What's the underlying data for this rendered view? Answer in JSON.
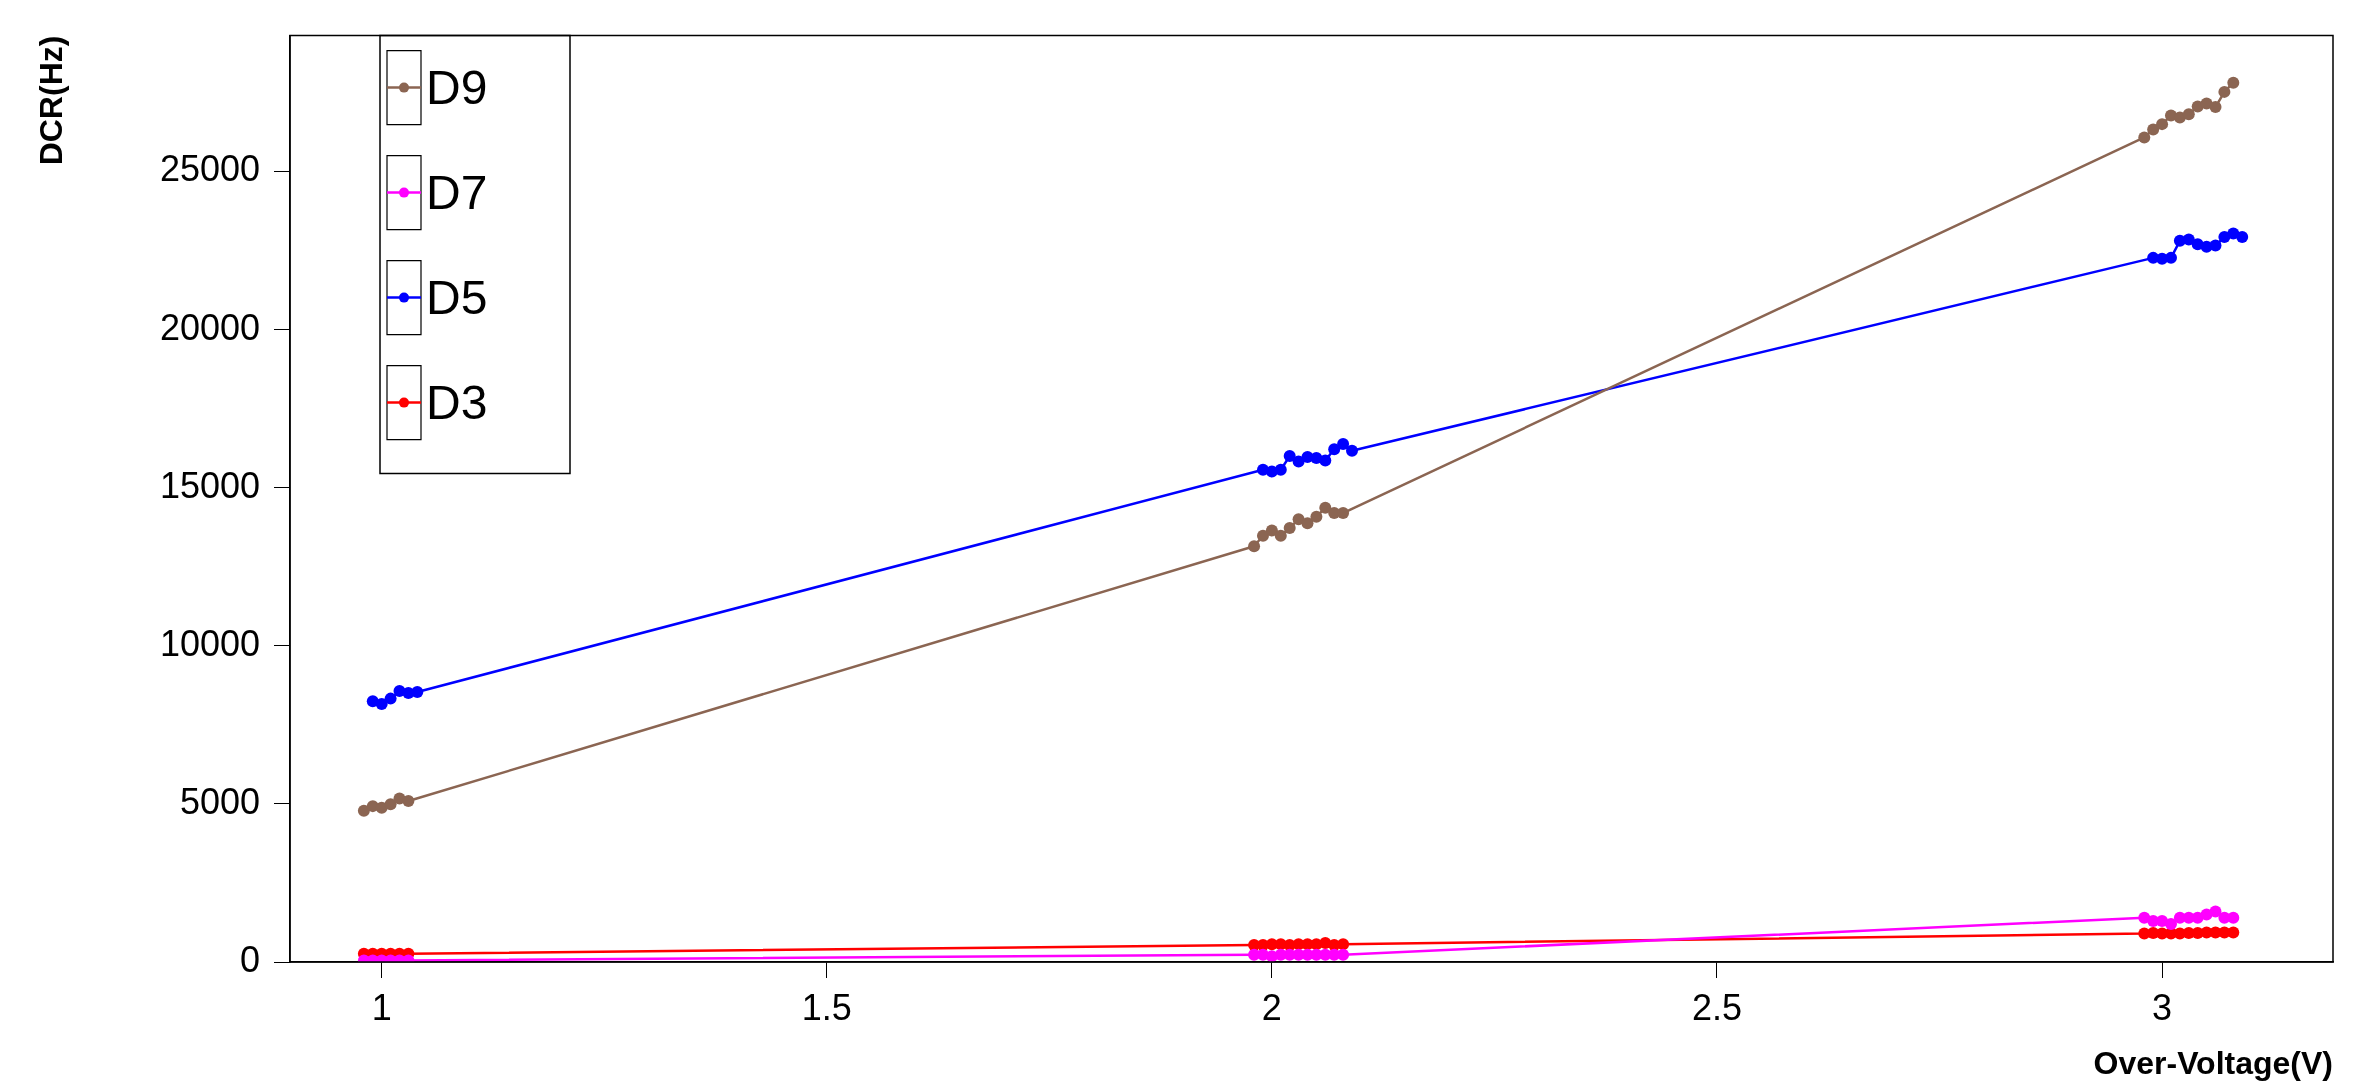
{
  "chart_data": {
    "type": "line",
    "xlabel": "Over-Voltage(V)",
    "ylabel": "DCR(Hz)",
    "xlim": [
      0.897,
      3.192
    ],
    "ylim": [
      0,
      29300
    ],
    "xticks": [
      1,
      1.5,
      2,
      2.5,
      3
    ],
    "yticks": [
      0,
      5000,
      10000,
      15000,
      20000,
      25000
    ],
    "grid": false,
    "legend": "top left",
    "marker": "circle",
    "line_style": "solid",
    "series": [
      {
        "name": "D9",
        "color": "#8b6552",
        "x": [
          0.98,
          0.99,
          1.0,
          1.01,
          1.02,
          1.03,
          1.98,
          1.99,
          2.0,
          2.01,
          2.02,
          2.03,
          2.04,
          2.05,
          2.06,
          2.07,
          2.08,
          2.98,
          2.99,
          3.0,
          3.01,
          3.02,
          3.03,
          3.04,
          3.05,
          3.06,
          3.07,
          3.08
        ],
        "values": [
          4780,
          4930,
          4880,
          4990,
          5170,
          5090,
          13150,
          13480,
          13650,
          13480,
          13730,
          14000,
          13880,
          14080,
          14370,
          14200,
          14200,
          26080,
          26330,
          26500,
          26770,
          26710,
          26810,
          27060,
          27150,
          27040,
          27520,
          27810
        ]
      },
      {
        "name": "D7",
        "color": "#ff00ff",
        "x": [
          0.98,
          0.99,
          1.0,
          1.01,
          1.02,
          1.03,
          1.98,
          1.99,
          2.0,
          2.01,
          2.02,
          2.03,
          2.04,
          2.05,
          2.06,
          2.07,
          2.08,
          2.98,
          2.99,
          3.0,
          3.01,
          3.02,
          3.03,
          3.04,
          3.05,
          3.06,
          3.07,
          3.08
        ],
        "values": [
          50,
          50,
          50,
          50,
          50,
          50,
          230,
          230,
          180,
          230,
          230,
          230,
          230,
          230,
          230,
          230,
          230,
          1400,
          1300,
          1300,
          1200,
          1400,
          1400,
          1400,
          1500,
          1600,
          1400,
          1400
        ]
      },
      {
        "name": "D5",
        "color": "#0000ff",
        "x": [
          0.99,
          1.0,
          1.01,
          1.02,
          1.03,
          1.04,
          1.99,
          2.0,
          2.01,
          2.02,
          2.03,
          2.04,
          2.05,
          2.06,
          2.07,
          2.08,
          2.09,
          2.99,
          3.0,
          3.01,
          3.02,
          3.03,
          3.04,
          3.05,
          3.06,
          3.07,
          3.08,
          3.09
        ],
        "values": [
          8250,
          8160,
          8330,
          8570,
          8510,
          8540,
          15570,
          15510,
          15570,
          16000,
          15830,
          15970,
          15940,
          15860,
          16220,
          16380,
          16170,
          22270,
          22240,
          22270,
          22810,
          22850,
          22700,
          22620,
          22660,
          22930,
          23040,
          22930
        ]
      },
      {
        "name": "D3",
        "color": "#ff0000",
        "x": [
          0.98,
          0.99,
          1.0,
          1.01,
          1.02,
          1.03,
          1.98,
          1.99,
          2.0,
          2.01,
          2.02,
          2.03,
          2.04,
          2.05,
          2.06,
          2.07,
          2.08,
          2.98,
          2.99,
          3.0,
          3.01,
          3.02,
          3.03,
          3.04,
          3.05,
          3.06,
          3.07,
          3.08
        ],
        "values": [
          260,
          260,
          260,
          260,
          260,
          260,
          540,
          540,
          560,
          560,
          540,
          560,
          560,
          560,
          600,
          540,
          560,
          900,
          920,
          900,
          900,
          900,
          920,
          920,
          930,
          930,
          930,
          930
        ]
      }
    ]
  }
}
